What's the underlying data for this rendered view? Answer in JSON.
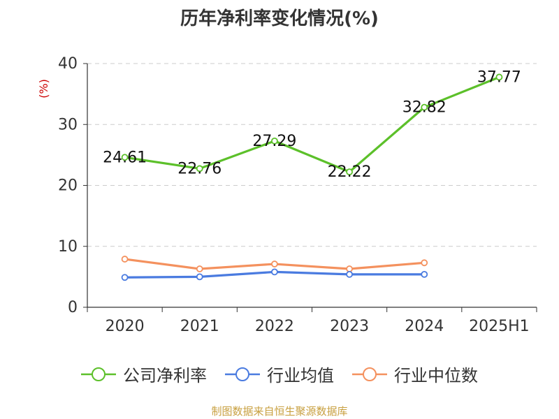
{
  "chart_data": {
    "type": "line",
    "title": "历年净利率变化情况(%)",
    "ylabel": "(%)",
    "categories": [
      "2020",
      "2021",
      "2022",
      "2023",
      "2024",
      "2025H1"
    ],
    "ylim": [
      0,
      40
    ],
    "yticks": [
      0,
      10,
      20,
      30,
      40
    ],
    "grid": true,
    "legend_position": "bottom",
    "series": [
      {
        "name": "公司净利率",
        "color": "#5cc02a",
        "values": [
          24.61,
          22.76,
          27.29,
          22.22,
          32.82,
          37.77
        ],
        "show_labels": true
      },
      {
        "name": "行业均值",
        "color": "#4a7be0",
        "values": [
          4.9,
          5.0,
          5.8,
          5.4,
          5.4,
          null
        ],
        "show_labels": false
      },
      {
        "name": "行业中位数",
        "color": "#f4915e",
        "values": [
          7.9,
          6.3,
          7.1,
          6.3,
          7.3,
          null
        ],
        "show_labels": false
      }
    ]
  },
  "footer": {
    "source": "制图数据来自恒生聚源数据库"
  }
}
